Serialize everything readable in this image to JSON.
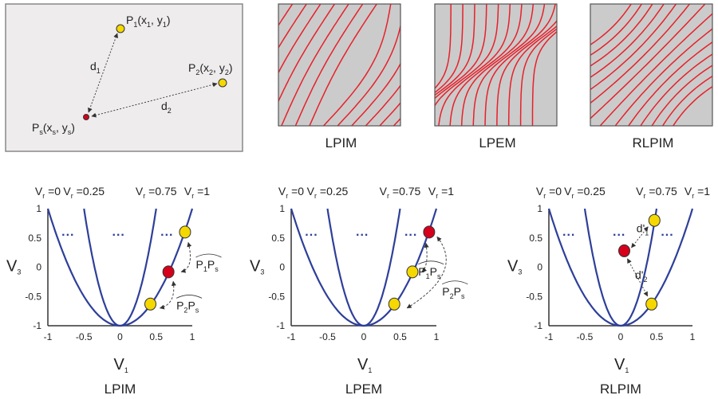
{
  "schematic": {
    "p1_label": "P1(x1, y1)",
    "p2_label": "P2(x2, y2)",
    "ps_label": "Ps(xs, ys)",
    "d1": "d1",
    "d2": "d2",
    "colors": {
      "background": "#eeeced",
      "known_point": "#f5d800",
      "query_point": "#d6001c"
    }
  },
  "contour_panels": [
    {
      "title": "LPIM"
    },
    {
      "title": "LPEM"
    },
    {
      "title": "RLPIM"
    }
  ],
  "contour_colors": {
    "background": "#cbcbcb",
    "line": "#e8202a"
  },
  "plots": [
    {
      "title": "LPIM",
      "points": [
        {
          "role": "P1",
          "v1": 0.9,
          "v3": 0.6,
          "color": "yellow"
        },
        {
          "role": "Ps",
          "v1": 0.67,
          "v3": -0.08,
          "color": "red"
        },
        {
          "role": "P2",
          "v1": 0.42,
          "v3": -0.63,
          "color": "yellow"
        }
      ],
      "annotations": [
        "P1Ps",
        "P2Ps"
      ]
    },
    {
      "title": "LPEM",
      "points": [
        {
          "role": "Ps",
          "v1": 0.9,
          "v3": 0.6,
          "color": "red"
        },
        {
          "role": "P1",
          "v1": 0.67,
          "v3": -0.08,
          "color": "yellow"
        },
        {
          "role": "P2",
          "v1": 0.42,
          "v3": -0.63,
          "color": "yellow"
        }
      ],
      "annotations": [
        "P1Ps",
        "P2Ps"
      ]
    },
    {
      "title": "RLPIM",
      "points": [
        {
          "role": "P1",
          "v1": 0.47,
          "v3": 0.8,
          "color": "yellow"
        },
        {
          "role": "Ps",
          "v1": 0.05,
          "v3": 0.28,
          "color": "red"
        },
        {
          "role": "P2",
          "v1": 0.43,
          "v3": -0.63,
          "color": "yellow"
        }
      ],
      "annotations": [
        "d'1",
        "d'2"
      ]
    }
  ],
  "plot_common": {
    "xlabel": "V1",
    "ylabel": "V3",
    "xlim": [
      -1,
      1
    ],
    "ylim": [
      -1,
      1
    ],
    "xticks": [
      "-1",
      "-0.5",
      "0",
      "0.5",
      "1"
    ],
    "yticks": [
      "1",
      "0.5",
      "0",
      "-0.5",
      "-1"
    ],
    "vr_labels": [
      "Vr =0",
      "Vr =0.25",
      "Vr =0.75",
      "Vr =1"
    ],
    "curve_half_widths": [
      1,
      0.5
    ],
    "ellipsis": "...",
    "curve_color": "#2e3f9a"
  }
}
